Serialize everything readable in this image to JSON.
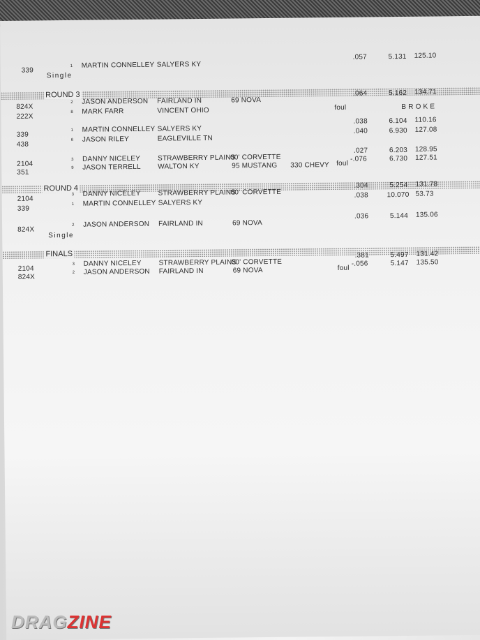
{
  "sections": [
    {
      "title": "",
      "rows": [
        {
          "number": "339",
          "lane": "1",
          "name": "MARTIN CONNELLEY",
          "city": "SALYERS  KY",
          "car": "",
          "extra": "",
          "foul": "",
          "rt": ".057",
          "et": "5.131",
          "mph": "125.10"
        }
      ],
      "note": "Single"
    },
    {
      "title": "ROUND 3",
      "rows": [
        {
          "number": "824X",
          "lane": "2",
          "name": "JASON ANDERSON",
          "city": "FAIRLAND IN",
          "car": "69 NOVA",
          "extra": "",
          "foul": "",
          "rt": ".064",
          "et": "5.162",
          "mph": "134.71"
        },
        {
          "number": "222X",
          "lane": "8",
          "name": "MARK FARR",
          "city": "VINCENT  OHIO",
          "car": "",
          "extra": "",
          "foul": "foul",
          "rt": "",
          "et": "B R O K E",
          "mph": ""
        },
        {
          "number": "339",
          "lane": "1",
          "name": "MARTIN CONNELLEY",
          "city": "SALYERS  KY",
          "car": "",
          "extra": "",
          "foul": "",
          "rt": ".038",
          "et": "6.104",
          "mph": "110.16"
        },
        {
          "number": "438",
          "lane": "6",
          "name": "JASON RILEY",
          "city": "EAGLEVILLE TN",
          "car": "",
          "extra": "",
          "foul": "",
          "rt": ".040",
          "et": "6.930",
          "mph": "127.08"
        },
        {
          "number": "2104",
          "lane": "3",
          "name": "DANNY NICELEY",
          "city": "STRAWBERRY PLAINS",
          "car": "00' CORVETTE",
          "extra": "",
          "foul": "",
          "rt": ".027",
          "et": "6.203",
          "mph": "128.95"
        },
        {
          "number": "351",
          "lane": "9",
          "name": "JASON TERRELL",
          "city": "WALTON KY",
          "car": "95 MUSTANG",
          "extra": "330 CHEVY",
          "foul": "foul",
          "rt": "-.076",
          "et": "6.730",
          "mph": "127.51"
        }
      ],
      "note": ""
    },
    {
      "title": "ROUND 4",
      "rows": [
        {
          "number": "2104",
          "lane": "3",
          "name": "DANNY NICELEY",
          "city": "STRAWBERRY PLAINS",
          "car": "00' CORVETTE",
          "extra": "",
          "foul": "",
          "rt": ".304",
          "et": "5.254",
          "mph": "131.78"
        },
        {
          "number": "339",
          "lane": "1",
          "name": "MARTIN CONNELLEY",
          "city": "SALYERS  KY",
          "car": "",
          "extra": "",
          "foul": "",
          "rt": ".038",
          "et": "10.070",
          "mph": "53.73"
        },
        {
          "number": "824X",
          "lane": "2",
          "name": "JASON ANDERSON",
          "city": "FAIRLAND IN",
          "car": "69 NOVA",
          "extra": "",
          "foul": "",
          "rt": ".036",
          "et": "5.144",
          "mph": "135.06"
        }
      ],
      "note": "Single"
    },
    {
      "title": "FINALS",
      "rows": [
        {
          "number": "2104",
          "lane": "3",
          "name": "DANNY NICELEY",
          "city": "STRAWBERRY PLAINS",
          "car": "00' CORVETTE",
          "extra": "",
          "foul": "",
          "rt": ".381",
          "et": "5.497",
          "mph": "131.42"
        },
        {
          "number": "824X",
          "lane": "2",
          "name": "JASON ANDERSON",
          "city": "FAIRLAND IN",
          "car": "69 NOVA",
          "extra": "",
          "foul": "foul",
          "rt": "-.056",
          "et": "5.147",
          "mph": "135.50"
        }
      ],
      "note": ""
    }
  ],
  "watermark": "DRAGZINE"
}
